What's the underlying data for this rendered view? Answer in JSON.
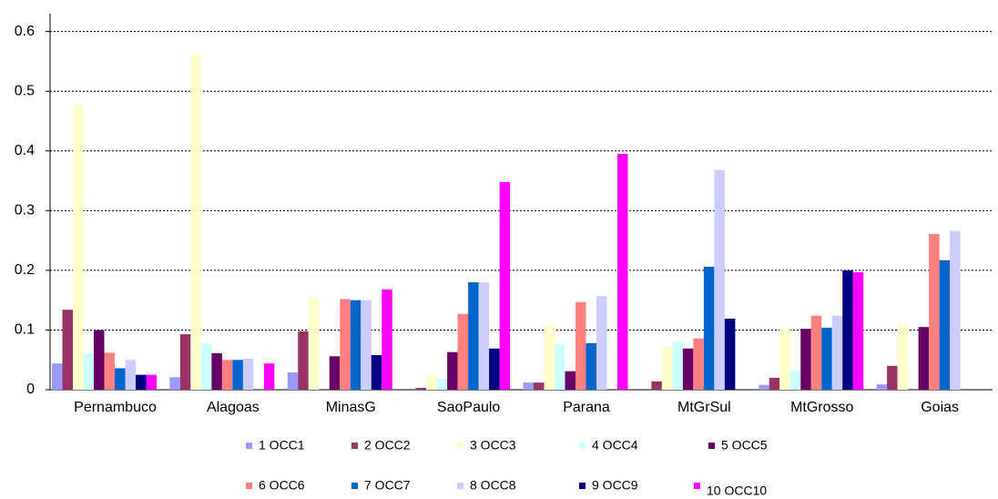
{
  "chart_data": {
    "type": "bar",
    "categories": [
      "Pernambuco",
      "Alagoas",
      "MinasG",
      "SaoPaulo",
      "Parana",
      "MtGrSul",
      "MtGrosso",
      "Goias"
    ],
    "series": [
      {
        "name": "1 OCC1",
        "color": "#9999ff",
        "values": [
          0.044,
          0.021,
          0.029,
          0,
          0.012,
          0,
          0.008,
          0.009
        ]
      },
      {
        "name": "2 OCC2",
        "color": "#993366",
        "values": [
          0.134,
          0.093,
          0.098,
          0.003,
          0.012,
          0.014,
          0.02,
          0.04
        ]
      },
      {
        "name": "3 OCC3",
        "color": "#ffffcc",
        "values": [
          0.478,
          0.562,
          0.154,
          0.024,
          0.108,
          0.072,
          0.102,
          0.111
        ]
      },
      {
        "name": "4 OCC4",
        "color": "#ccffff",
        "values": [
          0.061,
          0.078,
          0,
          0.018,
          0.076,
          0.08,
          0.032,
          0
        ]
      },
      {
        "name": "5 OCC5",
        "color": "#660066",
        "values": [
          0.1,
          0.061,
          0.056,
          0.063,
          0.031,
          0.069,
          0.102,
          0.105
        ]
      },
      {
        "name": "6 OCC6",
        "color": "#ff8080",
        "values": [
          0.062,
          0.05,
          0.152,
          0.127,
          0.147,
          0.086,
          0.124,
          0.261
        ]
      },
      {
        "name": "7 OCC7",
        "color": "#0066cc",
        "values": [
          0.036,
          0.05,
          0.15,
          0.18,
          0.078,
          0.206,
          0.104,
          0.217
        ]
      },
      {
        "name": "8 OCC8",
        "color": "#ccccff",
        "values": [
          0.05,
          0.052,
          0.15,
          0.18,
          0.157,
          0.368,
          0.124,
          0.266
        ]
      },
      {
        "name": "9 OCC9",
        "color": "#000080",
        "values": [
          0.025,
          0,
          0.058,
          0.069,
          0,
          0.119,
          0.2,
          0
        ]
      },
      {
        "name": "10 OCC10",
        "color": "#ff00ff",
        "values": [
          0.025,
          0.044,
          0.168,
          0.348,
          0.395,
          0,
          0.197,
          0
        ]
      }
    ],
    "ylim": [
      0,
      0.63
    ],
    "yticks": [
      0,
      0.1,
      0.2,
      0.3,
      0.4,
      0.5,
      0.6
    ],
    "grid": true
  }
}
